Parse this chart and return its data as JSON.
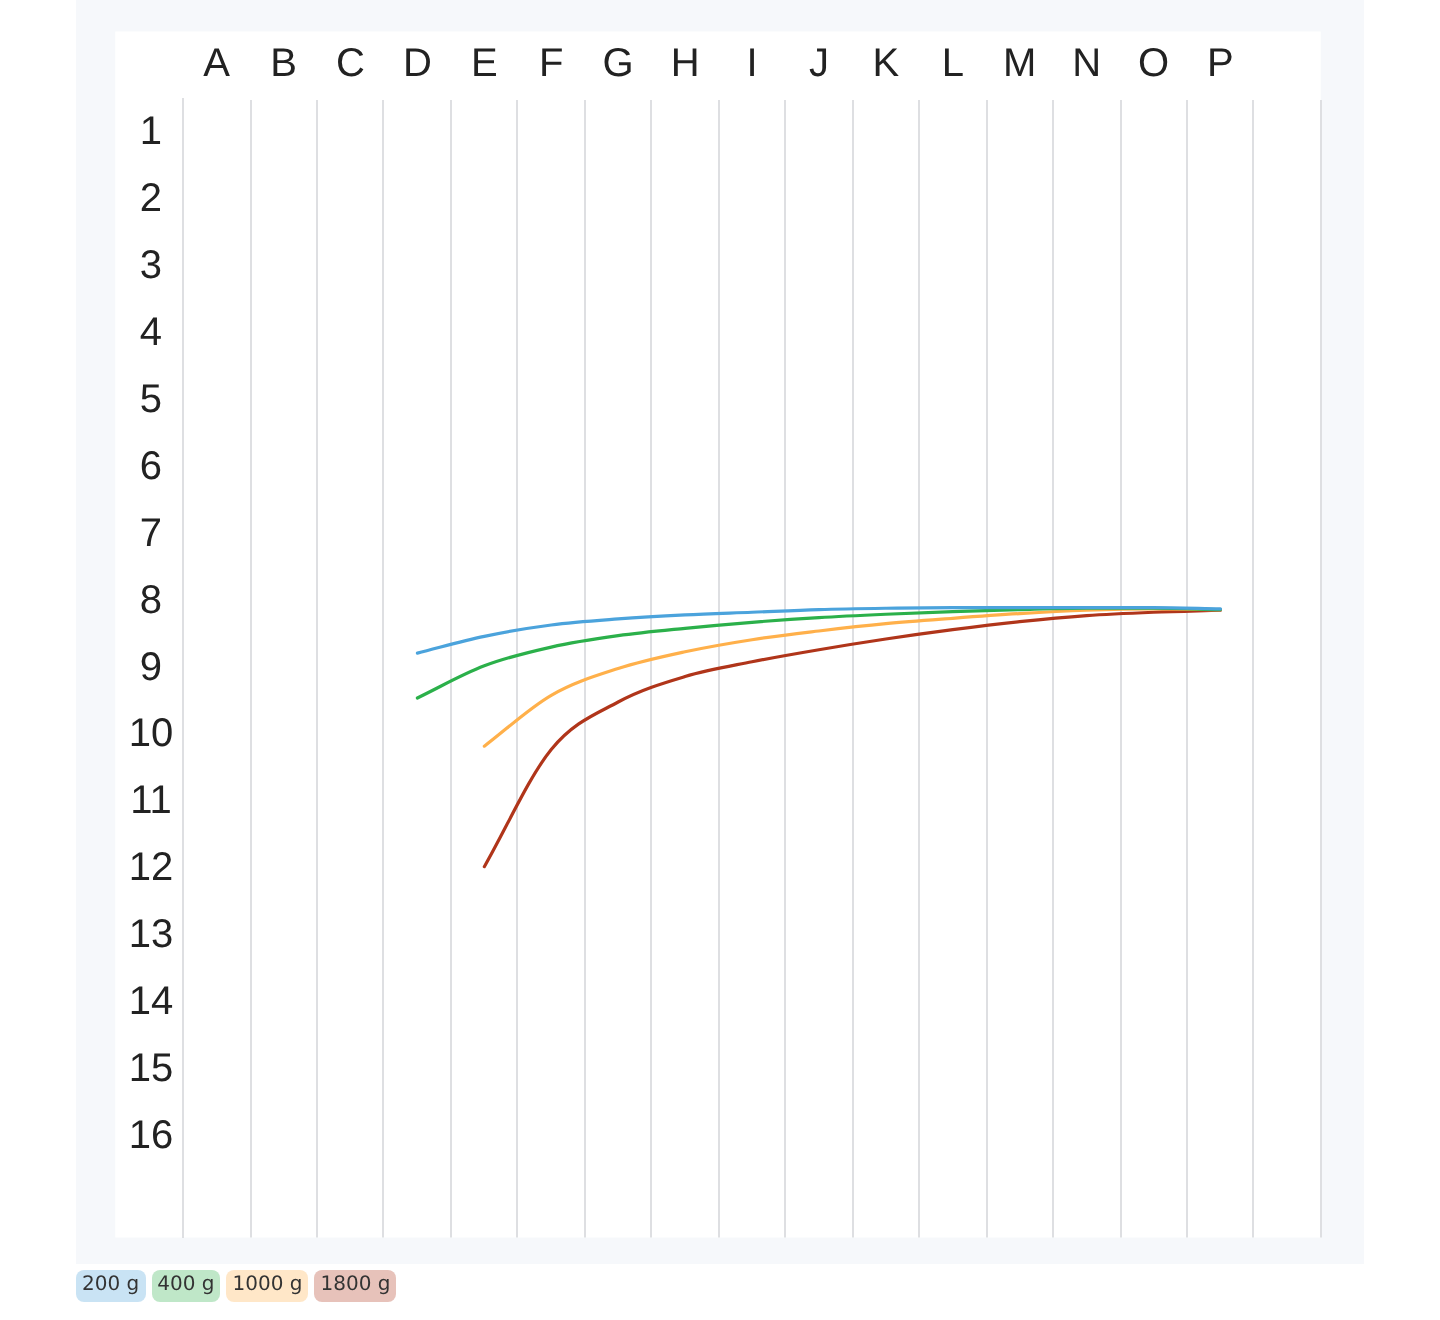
{
  "chart_data": {
    "type": "line",
    "categories": [
      "A",
      "B",
      "C",
      "D",
      "E",
      "F",
      "G",
      "H",
      "I",
      "J",
      "K",
      "L",
      "M",
      "N",
      "O",
      "P",
      null
    ],
    "ylim": [
      17.5,
      0.5
    ],
    "yticks": [
      1,
      2,
      3,
      4,
      5,
      6,
      7,
      8,
      9,
      10,
      11,
      12,
      13,
      14,
      15,
      16
    ],
    "grid": "x",
    "legend": "bottom left",
    "marker": "none",
    "series": [
      {
        "name": "200 g",
        "color": "#4ba3dc",
        "values": [
          null,
          null,
          null,
          8.77,
          8.52,
          8.35,
          8.26,
          8.2,
          8.16,
          8.12,
          8.1,
          8.09,
          8.09,
          8.09,
          8.09,
          8.11,
          null
        ]
      },
      {
        "name": "400 g",
        "color": "#2bb04a",
        "values": [
          null,
          null,
          null,
          9.44,
          8.96,
          8.68,
          8.51,
          8.4,
          8.31,
          8.24,
          8.19,
          8.15,
          8.12,
          8.1,
          8.1,
          8.12,
          null
        ]
      },
      {
        "name": "1000 g",
        "color": "#ffb04a",
        "values": [
          null,
          null,
          null,
          null,
          10.16,
          9.4,
          9.0,
          8.75,
          8.57,
          8.44,
          8.33,
          8.25,
          8.18,
          8.13,
          8.11,
          8.12,
          null
        ]
      },
      {
        "name": "1800 g",
        "color": "#b0351a",
        "values": [
          null,
          null,
          null,
          null,
          11.96,
          10.21,
          9.5,
          9.12,
          8.9,
          8.72,
          8.56,
          8.42,
          8.3,
          8.21,
          8.16,
          8.13,
          null
        ]
      }
    ]
  }
}
